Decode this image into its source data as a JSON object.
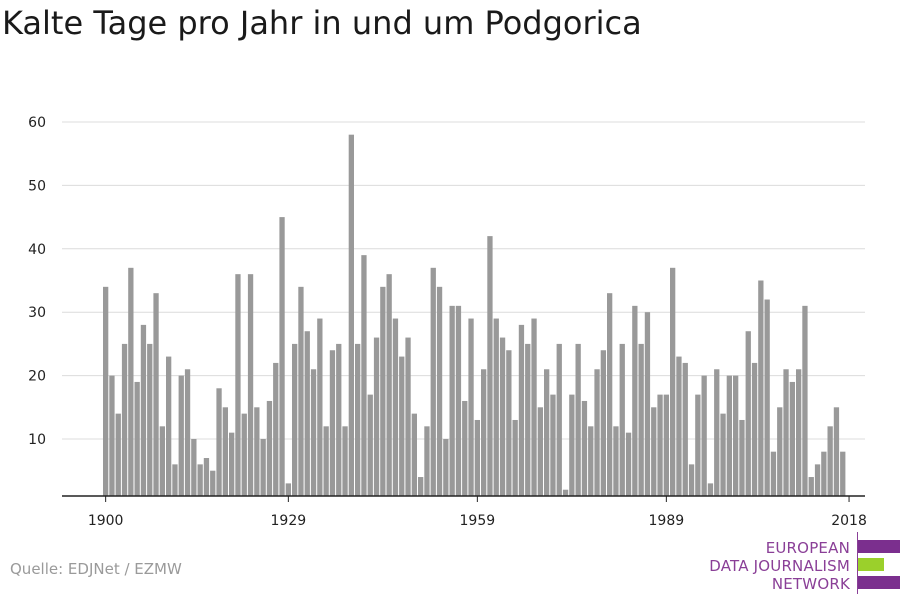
{
  "chart_data": {
    "type": "bar",
    "title": "Kalte Tage pro Jahr in und um Podgorica",
    "start_year": 1900,
    "xticks": [
      1900,
      1929,
      1959,
      1989,
      2018
    ],
    "yticks": [
      10,
      20,
      30,
      40,
      50,
      60
    ],
    "ylim": [
      0,
      60
    ],
    "color": "#999999",
    "values": [
      34,
      20,
      14,
      25,
      37,
      19,
      28,
      25,
      33,
      12,
      23,
      6,
      20,
      21,
      10,
      6,
      7,
      5,
      18,
      15,
      11,
      36,
      14,
      36,
      15,
      10,
      16,
      22,
      45,
      3,
      25,
      34,
      27,
      21,
      29,
      12,
      24,
      25,
      12,
      58,
      25,
      39,
      17,
      26,
      34,
      36,
      29,
      23,
      26,
      14,
      4,
      12,
      37,
      34,
      10,
      31,
      31,
      16,
      29,
      13,
      21,
      42,
      29,
      26,
      24,
      13,
      28,
      25,
      29,
      15,
      21,
      17,
      25,
      2,
      17,
      25,
      16,
      12,
      21,
      24,
      33,
      12,
      25,
      11,
      31,
      25,
      30,
      15,
      17,
      17,
      37,
      23,
      22,
      6,
      17,
      20,
      3,
      21,
      14,
      20,
      20,
      13,
      27,
      22,
      35,
      32,
      8,
      15,
      21,
      19,
      21,
      31,
      4,
      6,
      8,
      12,
      15,
      8
    ]
  },
  "source": "Quelle: EDJNet / EZMW",
  "logo": {
    "lines": [
      "EUROPEAN",
      "DATA JOURNALISM",
      "NETWORK"
    ],
    "purple": "#7b2f8e",
    "green": "#9bd02b"
  }
}
